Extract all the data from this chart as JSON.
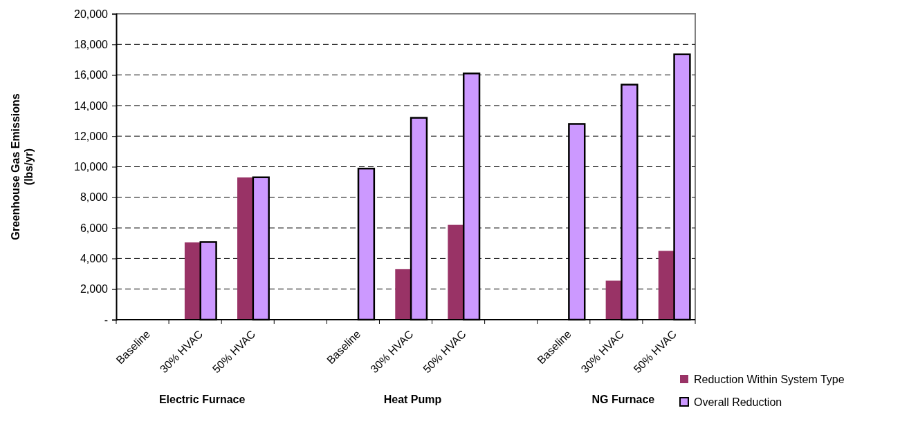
{
  "chart_data": {
    "type": "bar",
    "ylabel": "Greenhouse Gas Emissions\n(lbs/yr)",
    "categories": [
      "Baseline",
      "30% HVAC",
      "50% HVAC",
      null,
      "Baseline",
      "30% HVAC",
      "50% HVAC",
      null,
      "Baseline",
      "30% HVAC",
      "50% HVAC"
    ],
    "series": [
      {
        "name": "Reduction Within System Type",
        "color": "#993366",
        "values": [
          0,
          5050,
          9300,
          null,
          0,
          3300,
          6200,
          null,
          0,
          2550,
          4500
        ]
      },
      {
        "name": "Overall Reduction",
        "color": "#cc99ff",
        "values": [
          0,
          5080,
          9310,
          null,
          9880,
          13200,
          16100,
          null,
          12800,
          15370,
          17350
        ]
      }
    ],
    "ylim": [
      0,
      20000
    ],
    "yticks": [
      {
        "value": 0,
        "label": "-"
      },
      {
        "value": 2000,
        "label": "2,000"
      },
      {
        "value": 4000,
        "label": "4,000"
      },
      {
        "value": 6000,
        "label": "6,000"
      },
      {
        "value": 8000,
        "label": "8,000"
      },
      {
        "value": 10000,
        "label": "10,000"
      },
      {
        "value": 12000,
        "label": "12,000"
      },
      {
        "value": 14000,
        "label": "14,000"
      },
      {
        "value": 16000,
        "label": "16,000"
      },
      {
        "value": 18000,
        "label": "18,000"
      },
      {
        "value": 20000,
        "label": "20,000"
      }
    ],
    "grid": "y",
    "legend": "bottom right",
    "annotations": [
      "Electric Furnace",
      "Heat Pump",
      "NG Furnace"
    ]
  }
}
